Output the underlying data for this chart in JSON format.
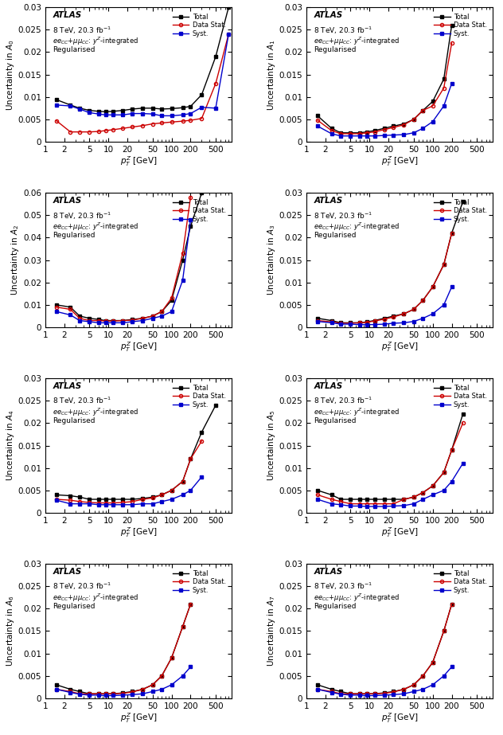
{
  "panels": [
    {
      "ylabel": "Uncertainty in $A_0$",
      "ylim": [
        0,
        0.03
      ],
      "yticks": [
        0,
        0.005,
        0.01,
        0.015,
        0.02,
        0.025,
        0.03
      ],
      "total": [
        0.0094,
        0.0082,
        0.0075,
        0.007,
        0.0068,
        0.0067,
        0.0068,
        0.007,
        0.0073,
        0.0075,
        0.0075,
        0.0073,
        0.0074,
        0.0076,
        0.0079,
        0.0105,
        0.019,
        0.03
      ],
      "data_stat": [
        0.0047,
        0.0022,
        0.0022,
        0.0022,
        0.0023,
        0.0025,
        0.0027,
        0.003,
        0.0033,
        0.0036,
        0.004,
        0.0042,
        0.0044,
        0.0046,
        0.0048,
        0.0052,
        0.013,
        0.024
      ],
      "syst": [
        0.0082,
        0.008,
        0.0073,
        0.0065,
        0.0062,
        0.006,
        0.006,
        0.006,
        0.0063,
        0.0063,
        0.0062,
        0.0058,
        0.0058,
        0.006,
        0.0063,
        0.0077,
        0.0075,
        0.024
      ],
      "x_total": [
        1.5,
        2.5,
        3.5,
        5,
        7,
        9,
        12,
        17,
        24,
        35,
        50,
        70,
        100,
        150,
        200,
        300,
        500,
        800
      ],
      "x_stat": [
        1.5,
        2.5,
        3.5,
        5,
        7,
        9,
        12,
        17,
        24,
        35,
        50,
        70,
        100,
        150,
        200,
        300,
        500,
        800
      ],
      "x_syst": [
        1.5,
        2.5,
        3.5,
        5,
        7,
        9,
        12,
        17,
        24,
        35,
        50,
        70,
        100,
        150,
        200,
        300,
        500,
        800
      ]
    },
    {
      "ylabel": "Uncertainty in $A_1$",
      "ylim": [
        0,
        0.03
      ],
      "yticks": [
        0,
        0.005,
        0.01,
        0.015,
        0.02,
        0.025,
        0.03
      ],
      "total": [
        0.0058,
        0.003,
        0.002,
        0.002,
        0.002,
        0.0022,
        0.0025,
        0.003,
        0.0035,
        0.004,
        0.005,
        0.007,
        0.009,
        0.014,
        0.026
      ],
      "data_stat": [
        0.0048,
        0.0025,
        0.0018,
        0.0018,
        0.0018,
        0.002,
        0.0022,
        0.0027,
        0.0032,
        0.0038,
        0.005,
        0.007,
        0.008,
        0.012,
        0.022
      ],
      "syst": [
        0.0035,
        0.0018,
        0.0013,
        0.0013,
        0.0013,
        0.0013,
        0.0013,
        0.0014,
        0.0015,
        0.0016,
        0.002,
        0.003,
        0.0045,
        0.008,
        0.013
      ],
      "x_total": [
        1.5,
        2.5,
        3.5,
        5,
        7,
        9,
        12,
        17,
        24,
        35,
        50,
        70,
        100,
        150,
        200
      ],
      "x_stat": [
        1.5,
        2.5,
        3.5,
        5,
        7,
        9,
        12,
        17,
        24,
        35,
        50,
        70,
        100,
        150,
        200
      ],
      "x_syst": [
        1.5,
        2.5,
        3.5,
        5,
        7,
        9,
        12,
        17,
        24,
        35,
        50,
        70,
        100,
        150,
        200
      ]
    },
    {
      "ylabel": "Uncertainty in $A_2$",
      "ylim": [
        0,
        0.06
      ],
      "yticks": [
        0,
        0.01,
        0.02,
        0.03,
        0.04,
        0.05,
        0.06
      ],
      "total": [
        0.01,
        0.009,
        0.005,
        0.004,
        0.0035,
        0.003,
        0.003,
        0.003,
        0.0035,
        0.004,
        0.005,
        0.007,
        0.012,
        0.03,
        0.045,
        0.06
      ],
      "data_stat": [
        0.009,
        0.008,
        0.004,
        0.003,
        0.003,
        0.0028,
        0.0028,
        0.003,
        0.0032,
        0.004,
        0.005,
        0.007,
        0.013,
        0.033,
        0.058
      ],
      "syst": [
        0.007,
        0.0055,
        0.003,
        0.0025,
        0.002,
        0.002,
        0.002,
        0.002,
        0.0025,
        0.003,
        0.004,
        0.005,
        0.007,
        0.021,
        0.048
      ],
      "x_total": [
        1.5,
        2.5,
        3.5,
        5,
        7,
        9,
        12,
        17,
        24,
        35,
        50,
        70,
        100,
        150,
        200,
        300
      ],
      "x_stat": [
        1.5,
        2.5,
        3.5,
        5,
        7,
        9,
        12,
        17,
        24,
        35,
        50,
        70,
        100,
        150,
        200
      ],
      "x_syst": [
        1.5,
        2.5,
        3.5,
        5,
        7,
        9,
        12,
        17,
        24,
        35,
        50,
        70,
        100,
        150,
        200
      ]
    },
    {
      "ylabel": "Uncertainty in $A_3$",
      "ylim": [
        0,
        0.03
      ],
      "yticks": [
        0,
        0.005,
        0.01,
        0.015,
        0.02,
        0.025,
        0.03
      ],
      "total": [
        0.002,
        0.0015,
        0.001,
        0.001,
        0.001,
        0.0012,
        0.0015,
        0.002,
        0.0025,
        0.003,
        0.004,
        0.006,
        0.009,
        0.014,
        0.021,
        0.028
      ],
      "data_stat": [
        0.0015,
        0.0012,
        0.0009,
        0.0009,
        0.001,
        0.0011,
        0.0014,
        0.0018,
        0.0023,
        0.003,
        0.004,
        0.006,
        0.009,
        0.014,
        0.021
      ],
      "syst": [
        0.0013,
        0.001,
        0.0007,
        0.0007,
        0.0006,
        0.0006,
        0.0006,
        0.0007,
        0.0009,
        0.001,
        0.0013,
        0.002,
        0.003,
        0.005,
        0.009
      ],
      "x_total": [
        1.5,
        2.5,
        3.5,
        5,
        7,
        9,
        12,
        17,
        24,
        35,
        50,
        70,
        100,
        150,
        200,
        300
      ],
      "x_stat": [
        1.5,
        2.5,
        3.5,
        5,
        7,
        9,
        12,
        17,
        24,
        35,
        50,
        70,
        100,
        150,
        200
      ],
      "x_syst": [
        1.5,
        2.5,
        3.5,
        5,
        7,
        9,
        12,
        17,
        24,
        35,
        50,
        70,
        100,
        150,
        200
      ]
    },
    {
      "ylabel": "Uncertainty in $A_4$",
      "ylim": [
        0,
        0.03
      ],
      "yticks": [
        0,
        0.005,
        0.01,
        0.015,
        0.02,
        0.025,
        0.03
      ],
      "total": [
        0.004,
        0.0038,
        0.0035,
        0.003,
        0.003,
        0.003,
        0.003,
        0.003,
        0.003,
        0.0032,
        0.0035,
        0.004,
        0.005,
        0.007,
        0.012,
        0.018,
        0.024
      ],
      "data_stat": [
        0.003,
        0.0028,
        0.0025,
        0.0023,
        0.0022,
        0.0022,
        0.0022,
        0.0023,
        0.0025,
        0.003,
        0.0033,
        0.004,
        0.005,
        0.007,
        0.012,
        0.016
      ],
      "syst": [
        0.0028,
        0.002,
        0.002,
        0.002,
        0.0018,
        0.0018,
        0.0018,
        0.0018,
        0.0018,
        0.002,
        0.002,
        0.0025,
        0.003,
        0.004,
        0.005,
        0.008
      ],
      "x_total": [
        1.5,
        2.5,
        3.5,
        5,
        7,
        9,
        12,
        17,
        24,
        35,
        50,
        70,
        100,
        150,
        200,
        300,
        500
      ],
      "x_stat": [
        1.5,
        2.5,
        3.5,
        5,
        7,
        9,
        12,
        17,
        24,
        35,
        50,
        70,
        100,
        150,
        200,
        300
      ],
      "x_syst": [
        1.5,
        2.5,
        3.5,
        5,
        7,
        9,
        12,
        17,
        24,
        35,
        50,
        70,
        100,
        150,
        200,
        300
      ]
    },
    {
      "ylabel": "Uncertainty in $A_5$",
      "ylim": [
        0,
        0.03
      ],
      "yticks": [
        0,
        0.005,
        0.01,
        0.015,
        0.02,
        0.025,
        0.03
      ],
      "total": [
        0.005,
        0.004,
        0.003,
        0.003,
        0.003,
        0.003,
        0.003,
        0.003,
        0.003,
        0.003,
        0.0035,
        0.0045,
        0.006,
        0.009,
        0.014,
        0.022
      ],
      "data_stat": [
        0.004,
        0.003,
        0.0025,
        0.002,
        0.002,
        0.002,
        0.002,
        0.002,
        0.002,
        0.003,
        0.0035,
        0.0045,
        0.006,
        0.009,
        0.014,
        0.02
      ],
      "syst": [
        0.003,
        0.002,
        0.0018,
        0.0015,
        0.0015,
        0.0014,
        0.0014,
        0.0014,
        0.0015,
        0.0016,
        0.002,
        0.003,
        0.004,
        0.005,
        0.007,
        0.011
      ],
      "x_total": [
        1.5,
        2.5,
        3.5,
        5,
        7,
        9,
        12,
        17,
        24,
        35,
        50,
        70,
        100,
        150,
        200,
        300
      ],
      "x_stat": [
        1.5,
        2.5,
        3.5,
        5,
        7,
        9,
        12,
        17,
        24,
        35,
        50,
        70,
        100,
        150,
        200,
        300
      ],
      "x_syst": [
        1.5,
        2.5,
        3.5,
        5,
        7,
        9,
        12,
        17,
        24,
        35,
        50,
        70,
        100,
        150,
        200,
        300
      ]
    },
    {
      "ylabel": "Uncertainty in $A_6$",
      "ylim": [
        0,
        0.03
      ],
      "yticks": [
        0,
        0.005,
        0.01,
        0.015,
        0.02,
        0.025,
        0.03
      ],
      "total": [
        0.003,
        0.002,
        0.0015,
        0.001,
        0.001,
        0.001,
        0.001,
        0.0012,
        0.0015,
        0.002,
        0.003,
        0.005,
        0.009,
        0.016,
        0.021
      ],
      "data_stat": [
        0.002,
        0.0015,
        0.001,
        0.001,
        0.001,
        0.001,
        0.001,
        0.0011,
        0.0014,
        0.002,
        0.003,
        0.005,
        0.009,
        0.016,
        0.021
      ],
      "syst": [
        0.002,
        0.0013,
        0.0009,
        0.0007,
        0.0007,
        0.0006,
        0.0006,
        0.0007,
        0.0008,
        0.001,
        0.0015,
        0.002,
        0.003,
        0.005,
        0.007
      ],
      "x_total": [
        1.5,
        2.5,
        3.5,
        5,
        7,
        9,
        12,
        17,
        24,
        35,
        50,
        70,
        100,
        150,
        200
      ],
      "x_stat": [
        1.5,
        2.5,
        3.5,
        5,
        7,
        9,
        12,
        17,
        24,
        35,
        50,
        70,
        100,
        150,
        200
      ],
      "x_syst": [
        1.5,
        2.5,
        3.5,
        5,
        7,
        9,
        12,
        17,
        24,
        35,
        50,
        70,
        100,
        150,
        200
      ]
    },
    {
      "ylabel": "Uncertainty in $A_7$",
      "ylim": [
        0,
        0.03
      ],
      "yticks": [
        0,
        0.005,
        0.01,
        0.015,
        0.02,
        0.025,
        0.03
      ],
      "total": [
        0.003,
        0.002,
        0.0015,
        0.001,
        0.001,
        0.001,
        0.001,
        0.0012,
        0.0015,
        0.002,
        0.003,
        0.005,
        0.008,
        0.015,
        0.021
      ],
      "data_stat": [
        0.002,
        0.0015,
        0.001,
        0.001,
        0.001,
        0.001,
        0.001,
        0.0011,
        0.0014,
        0.002,
        0.003,
        0.005,
        0.008,
        0.015,
        0.021
      ],
      "syst": [
        0.002,
        0.0013,
        0.0009,
        0.0007,
        0.0007,
        0.0006,
        0.0006,
        0.0007,
        0.0008,
        0.001,
        0.0015,
        0.002,
        0.003,
        0.005,
        0.007
      ],
      "x_total": [
        1.5,
        2.5,
        3.5,
        5,
        7,
        9,
        12,
        17,
        24,
        35,
        50,
        70,
        100,
        150,
        200
      ],
      "x_stat": [
        1.5,
        2.5,
        3.5,
        5,
        7,
        9,
        12,
        17,
        24,
        35,
        50,
        70,
        100,
        150,
        200
      ],
      "x_syst": [
        1.5,
        2.5,
        3.5,
        5,
        7,
        9,
        12,
        17,
        24,
        35,
        50,
        70,
        100,
        150,
        200
      ]
    }
  ],
  "color_total": "#000000",
  "color_data_stat": "#cc0000",
  "color_syst": "#0000cc",
  "atlas_text": "ATLAS",
  "info_text1": "8 TeV, 20.3 fb$^{-1}$",
  "info_text2": "$ee_{CC}$+$\\mu\\mu_{CC}$: $y^Z$-integrated",
  "info_text3": "Regularised",
  "xlabel": "$p_T^Z$ [GeV]"
}
